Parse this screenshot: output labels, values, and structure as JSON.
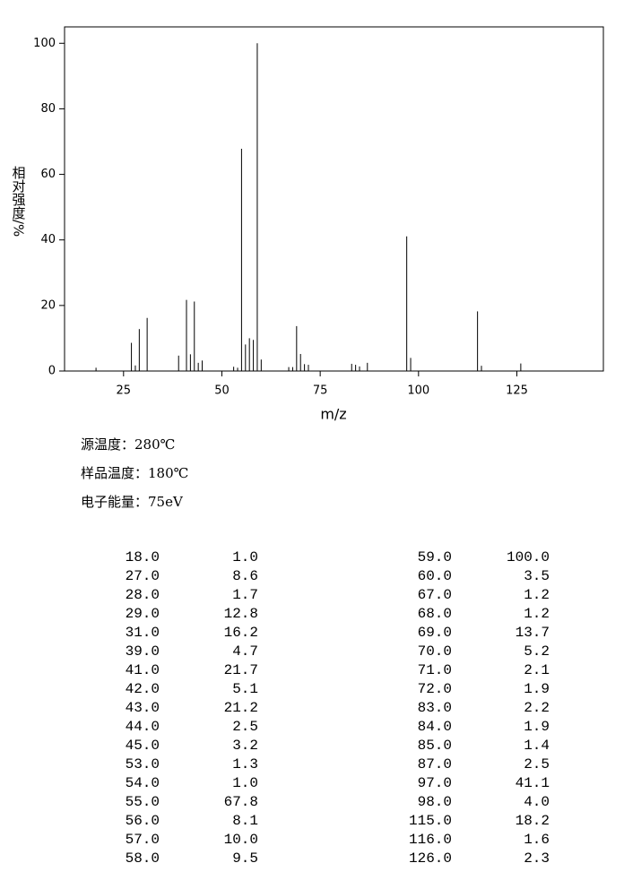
{
  "chart_data": {
    "type": "bar",
    "xlabel": "m/z",
    "ylabel": "相对强度/%",
    "color": "#000000",
    "x": [
      18,
      27,
      28,
      29,
      31,
      39,
      41,
      42,
      43,
      44,
      45,
      53,
      54,
      55,
      56,
      57,
      58,
      59,
      60,
      67,
      68,
      69,
      70,
      71,
      72,
      83,
      84,
      85,
      87,
      97,
      98,
      115,
      116,
      126
    ],
    "values": [
      1.0,
      8.6,
      1.7,
      12.8,
      16.2,
      4.7,
      21.7,
      5.1,
      21.2,
      2.5,
      3.2,
      1.3,
      1.0,
      67.8,
      8.1,
      10.0,
      9.5,
      100.0,
      3.5,
      1.2,
      1.2,
      13.7,
      5.2,
      2.1,
      1.9,
      2.2,
      1.9,
      1.4,
      2.5,
      41.1,
      4.0,
      18.2,
      1.6,
      2.3
    ],
    "xlim": [
      10,
      147
    ],
    "xticks": [
      25,
      50,
      75,
      100,
      125
    ],
    "ylim": [
      0,
      105
    ],
    "yticks": [
      0,
      20,
      40,
      60,
      80,
      100
    ]
  },
  "info": [
    "源温度：280℃",
    "样品温度：180℃",
    "电子能量：75eV"
  ],
  "table": {
    "rows": [
      [
        "18.0",
        "1.0",
        "59.0",
        "100.0"
      ],
      [
        "27.0",
        "8.6",
        "60.0",
        "3.5"
      ],
      [
        "28.0",
        "1.7",
        "67.0",
        "1.2"
      ],
      [
        "29.0",
        "12.8",
        "68.0",
        "1.2"
      ],
      [
        "31.0",
        "16.2",
        "69.0",
        "13.7"
      ],
      [
        "39.0",
        "4.7",
        "70.0",
        "5.2"
      ],
      [
        "41.0",
        "21.7",
        "71.0",
        "2.1"
      ],
      [
        "42.0",
        "5.1",
        "72.0",
        "1.9"
      ],
      [
        "43.0",
        "21.2",
        "83.0",
        "2.2"
      ],
      [
        "44.0",
        "2.5",
        "84.0",
        "1.9"
      ],
      [
        "45.0",
        "3.2",
        "85.0",
        "1.4"
      ],
      [
        "53.0",
        "1.3",
        "87.0",
        "2.5"
      ],
      [
        "54.0",
        "1.0",
        "97.0",
        "41.1"
      ],
      [
        "55.0",
        "67.8",
        "98.0",
        "4.0"
      ],
      [
        "56.0",
        "8.1",
        "115.0",
        "18.2"
      ],
      [
        "57.0",
        "10.0",
        "116.0",
        "1.6"
      ],
      [
        "58.0",
        "9.5",
        "126.0",
        "2.3"
      ]
    ]
  }
}
